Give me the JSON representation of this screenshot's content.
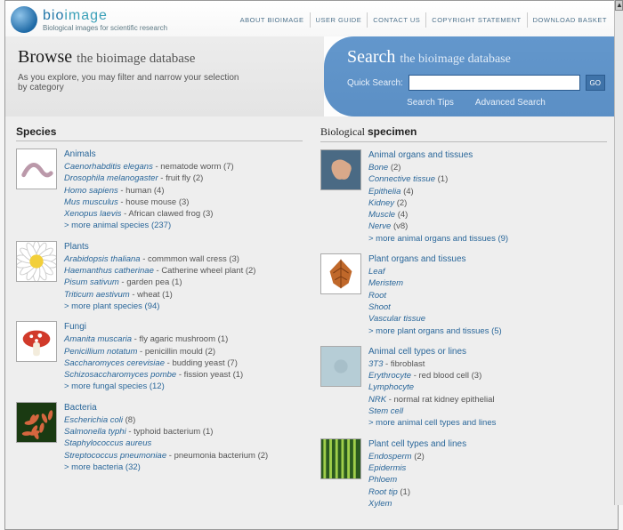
{
  "header": {
    "logo_word": "bioimage",
    "tagline": "Biological images for scientific research",
    "nav": [
      {
        "label": "About Bioimage"
      },
      {
        "label": "User Guide"
      },
      {
        "label": "Contact Us"
      },
      {
        "label": "Copyright Statement"
      },
      {
        "label": "Download Basket"
      }
    ]
  },
  "hero": {
    "browse_word": "Browse",
    "browse_rest": "the bioimage database",
    "browse_sub": "As you explore, you may filter and narrow your selection by category",
    "search_word": "Search",
    "search_rest": "the bioimage database",
    "quick_label": "Quick Search:",
    "go": "go",
    "placeholder": "",
    "tips": "Search Tips",
    "advanced": "Advanced Search"
  },
  "left_title": "Species",
  "right_title": "Biological specimen",
  "left_groups": [
    {
      "name": "Animals",
      "thumb": "worm",
      "items": [
        {
          "latin": "Caenorhabditis elegans",
          "common": "nematode worm",
          "count": 7
        },
        {
          "latin": "Drosophila melanogaster",
          "common": "fruit fly",
          "count": 2
        },
        {
          "latin": "Homo sapiens",
          "common": "human",
          "count": 4
        },
        {
          "latin": "Mus musculus",
          "common": "house mouse",
          "count": 3
        },
        {
          "latin": "Xenopus laevis",
          "common": "African clawed frog",
          "count": 3
        }
      ],
      "more": "> more animal species (237)"
    },
    {
      "name": "Plants",
      "thumb": "flower",
      "items": [
        {
          "latin": "Arabidopsis thaliana",
          "common": "commmon wall cress",
          "count": 3
        },
        {
          "latin": "Haemanthus catherinae",
          "common": "Catherine wheel plant",
          "count": 2
        },
        {
          "latin": "Pisum sativum",
          "common": "garden pea",
          "count": 1
        },
        {
          "latin": "Triticum aestivum",
          "common": "wheat",
          "count": 1
        }
      ],
      "more": "> more plant species (94)"
    },
    {
      "name": "Fungi",
      "thumb": "mushroom",
      "items": [
        {
          "latin": "Amanita muscaria",
          "common": "fly agaric mushroom",
          "count": 1
        },
        {
          "latin": "Penicillium notatum",
          "common": "penicillin mould",
          "count": 2
        },
        {
          "latin": "Saccharomyces cerevisiae",
          "common": "budding yeast",
          "count": 7
        },
        {
          "latin": "Schizosaccharomyces pombe",
          "common": "fission yeast",
          "count": 1
        }
      ],
      "more": "> more fungal species (12)"
    },
    {
      "name": "Bacteria",
      "thumb": "bacteria",
      "items": [
        {
          "latin": "Escherichia coli",
          "common": "",
          "count": 8
        },
        {
          "latin": "Salmonella typhi",
          "common": "typhoid bacterium",
          "count": 1
        },
        {
          "latin": "Staphylococcus aureus",
          "common": "",
          "count": null
        },
        {
          "latin": "Streptococcus pneumoniae",
          "common": "pneumonia bacterium",
          "count": 2
        }
      ],
      "more": "> more bacteria (32)"
    }
  ],
  "right_groups": [
    {
      "name": "Animal organs and tissues",
      "thumb": "brain",
      "items": [
        {
          "latin": "Bone",
          "common": "",
          "count": 2
        },
        {
          "latin": "Connective tissue",
          "common": "",
          "count": 1
        },
        {
          "latin": "Epithelia",
          "common": "",
          "count": 4
        },
        {
          "latin": "Kidney",
          "common": "",
          "count": 2
        },
        {
          "latin": "Muscle",
          "common": "",
          "count": 4
        },
        {
          "latin": "Nerve",
          "common": "",
          "count": "v8"
        }
      ],
      "more": "> more animal organs and tissues (9)"
    },
    {
      "name": "Plant organs and tissues",
      "thumb": "leaf",
      "items": [
        {
          "latin": "Leaf",
          "common": "",
          "count": null
        },
        {
          "latin": "Meristem",
          "common": "",
          "count": null
        },
        {
          "latin": "Root",
          "common": "",
          "count": null
        },
        {
          "latin": "Shoot",
          "common": "",
          "count": null
        },
        {
          "latin": "Vascular tissue",
          "common": "",
          "count": null
        }
      ],
      "more": "> more plant organs and tissues (5)"
    },
    {
      "name": "Animal cell types or lines",
      "thumb": "cell",
      "items": [
        {
          "latin": "3T3",
          "common": "fibroblast",
          "count": null
        },
        {
          "latin": "Erythrocyte",
          "common": "red blood cell",
          "count": 3
        },
        {
          "latin": "Lymphocyte",
          "common": "",
          "count": null
        },
        {
          "latin": "NRK",
          "common": "normal rat kidney epithelial",
          "count": null
        },
        {
          "latin": "Stem cell",
          "common": "",
          "count": null
        }
      ],
      "more": "> more animal cell types and lines"
    },
    {
      "name": "Plant cell types and lines",
      "thumb": "pcell",
      "items": [
        {
          "latin": "Endosperm",
          "common": "",
          "count": 2
        },
        {
          "latin": "Epidermis",
          "common": "",
          "count": null
        },
        {
          "latin": "Phloem",
          "common": "",
          "count": null
        },
        {
          "latin": "Root tip",
          "common": "",
          "count": 1
        },
        {
          "latin": "Xylem",
          "common": "",
          "count": null
        }
      ],
      "more": ""
    }
  ]
}
